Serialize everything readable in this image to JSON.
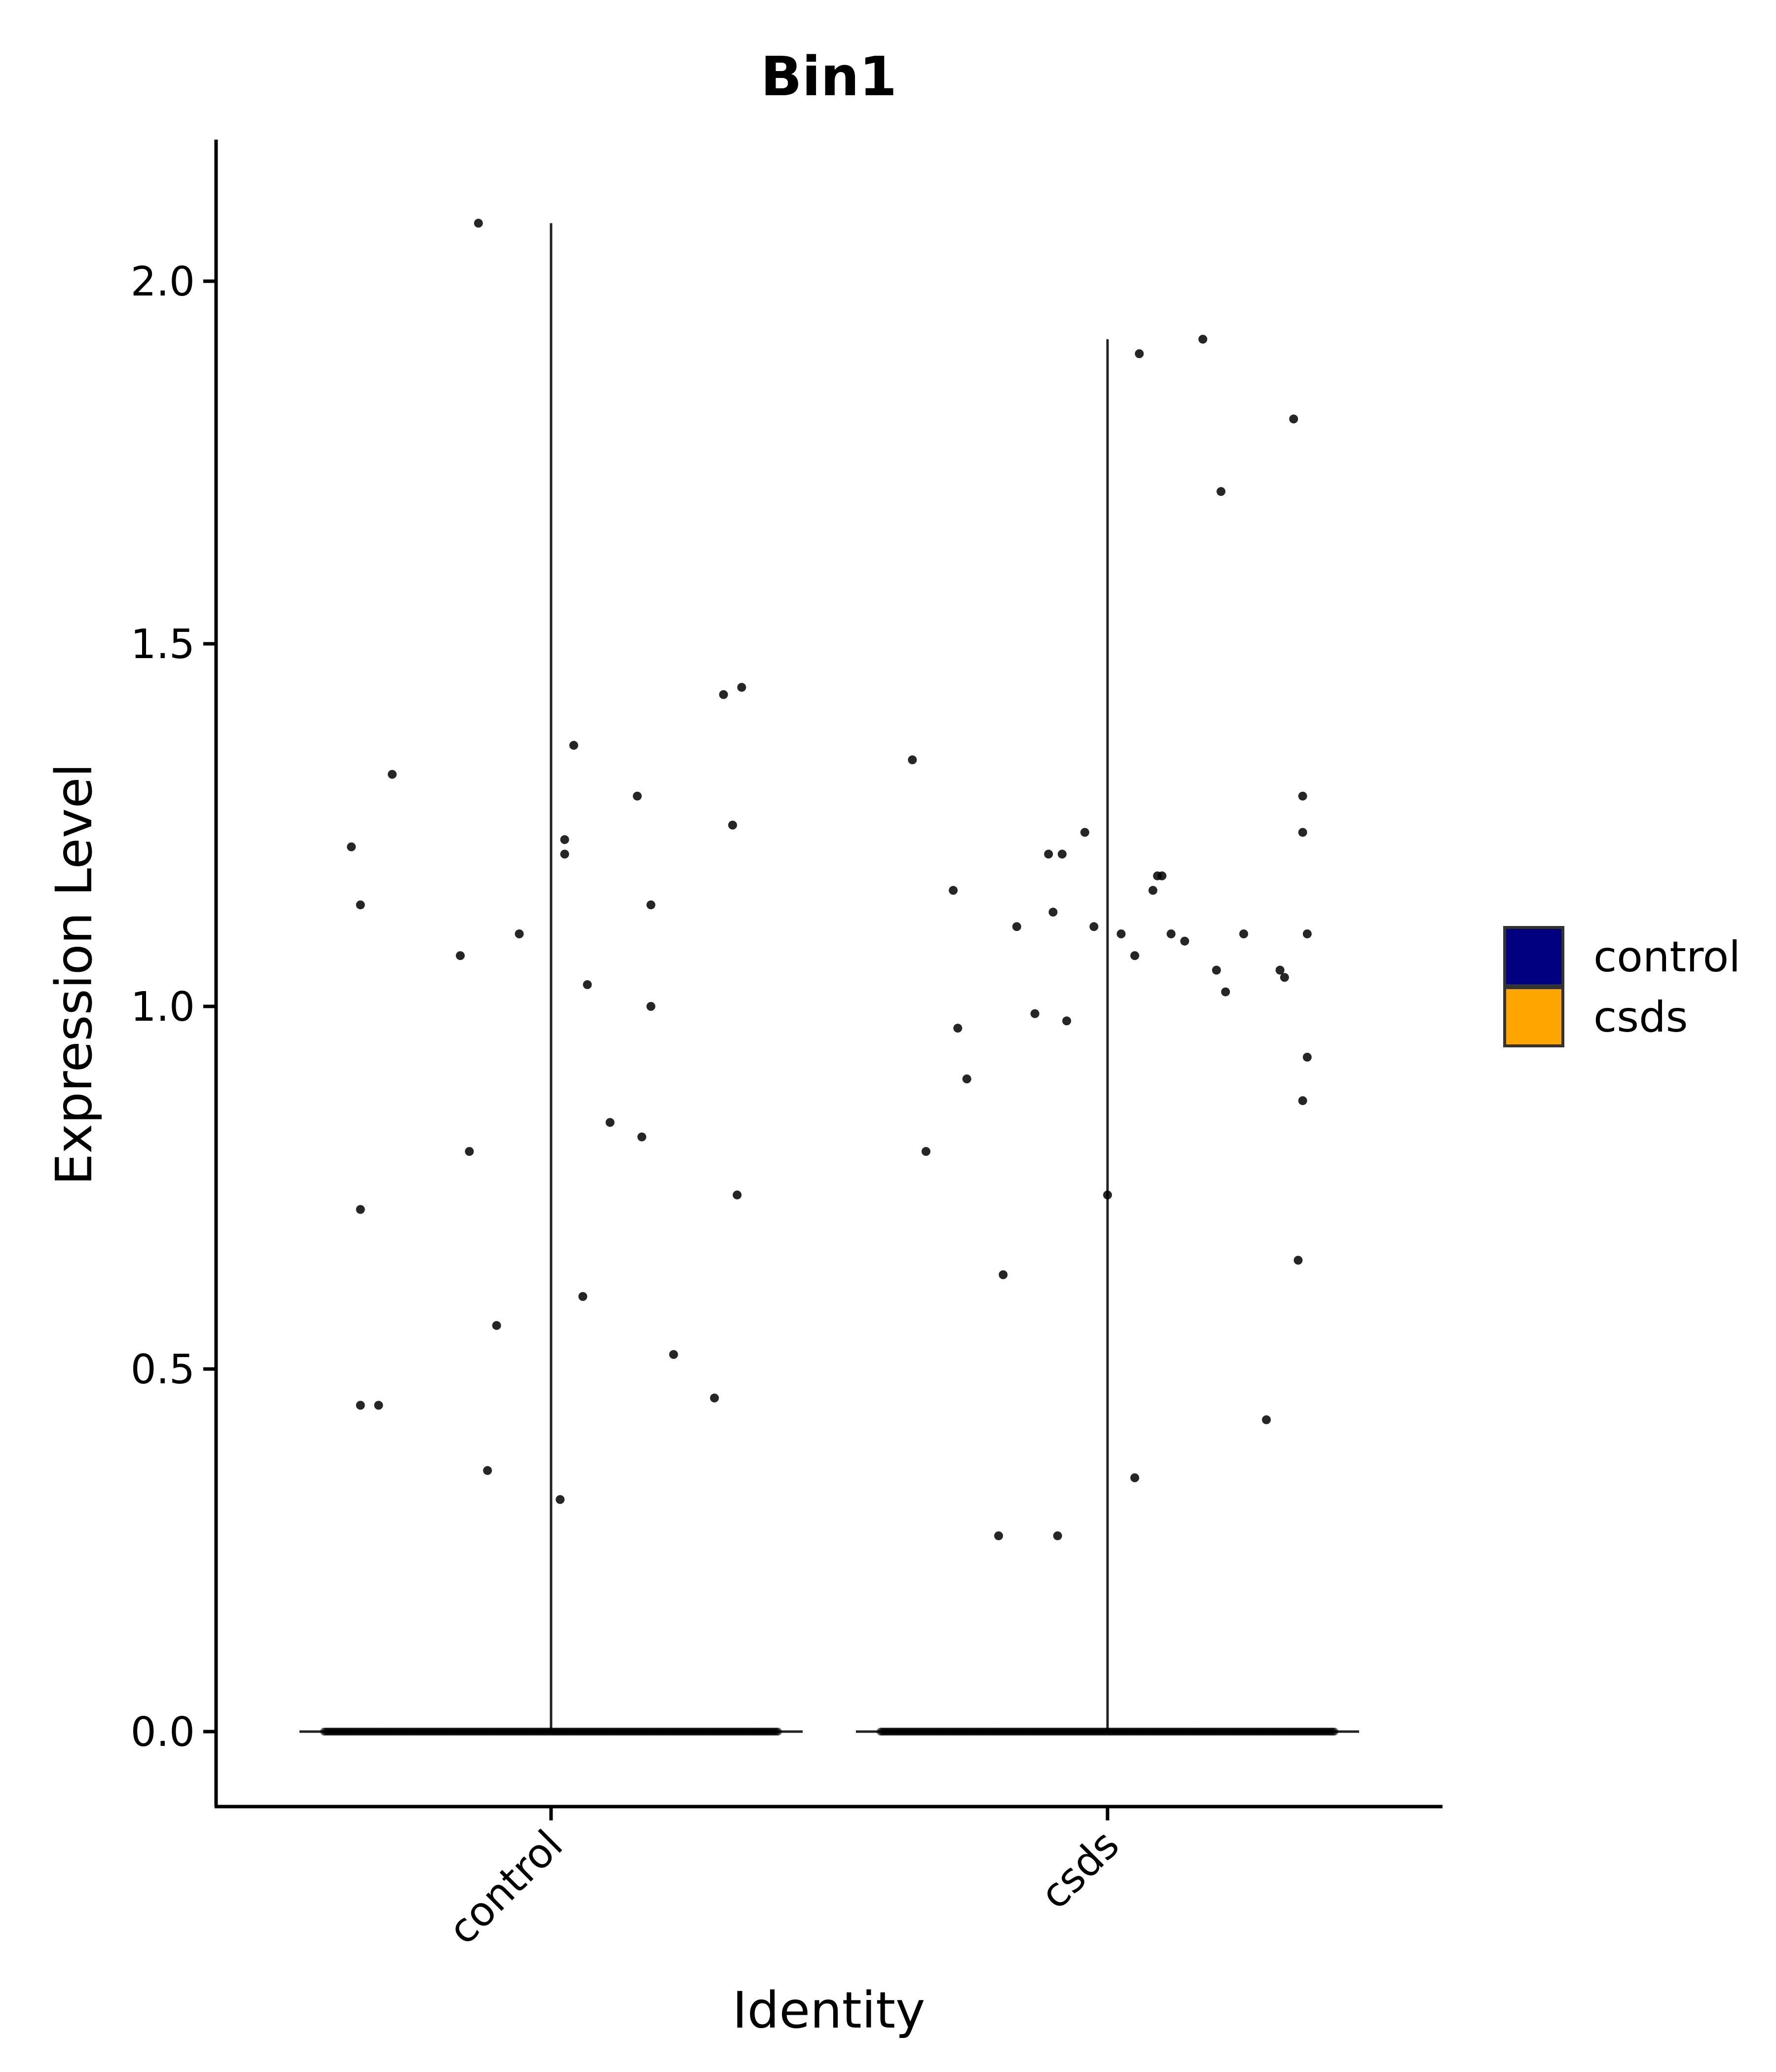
{
  "chart_data": {
    "type": "violin",
    "title": "Bin1",
    "xlabel": "Identity",
    "ylabel": "Expression Level",
    "ylim": [
      -0.1,
      2.2
    ],
    "yticks": [
      0.0,
      0.5,
      1.0,
      1.5,
      2.0
    ],
    "ytick_labels": [
      "0.0",
      "0.5",
      "1.0",
      "1.5",
      "2.0"
    ],
    "categories": [
      "control",
      "csds"
    ],
    "grid": false,
    "legend": {
      "position": "right",
      "entries": [
        {
          "label": "control",
          "color": "#000080"
        },
        {
          "label": "csds",
          "color": "#FFA500"
        }
      ]
    },
    "series": [
      {
        "category": "control",
        "max": 2.08,
        "zero_count": 300,
        "nonzero_points": [
          {
            "x": 0.06,
            "y": 1.22
          },
          {
            "x": 0.08,
            "y": 1.14
          },
          {
            "x": 0.08,
            "y": 0.72
          },
          {
            "x": 0.08,
            "y": 0.45
          },
          {
            "x": 0.12,
            "y": 0.45
          },
          {
            "x": 0.15,
            "y": 1.32
          },
          {
            "x": 0.3,
            "y": 1.07
          },
          {
            "x": 0.32,
            "y": 0.8
          },
          {
            "x": 0.34,
            "y": 2.08
          },
          {
            "x": 0.36,
            "y": 0.36
          },
          {
            "x": 0.38,
            "y": 0.56
          },
          {
            "x": 0.43,
            "y": 1.1
          },
          {
            "x": 0.52,
            "y": 0.32
          },
          {
            "x": 0.53,
            "y": 1.23
          },
          {
            "x": 0.53,
            "y": 1.21
          },
          {
            "x": 0.55,
            "y": 1.36
          },
          {
            "x": 0.57,
            "y": 0.6
          },
          {
            "x": 0.58,
            "y": 1.03
          },
          {
            "x": 0.63,
            "y": 0.84
          },
          {
            "x": 0.69,
            "y": 1.29
          },
          {
            "x": 0.7,
            "y": 0.82
          },
          {
            "x": 0.72,
            "y": 1.0
          },
          {
            "x": 0.72,
            "y": 1.14
          },
          {
            "x": 0.77,
            "y": 0.52
          },
          {
            "x": 0.86,
            "y": 0.46
          },
          {
            "x": 0.88,
            "y": 1.43
          },
          {
            "x": 0.9,
            "y": 1.25
          },
          {
            "x": 0.91,
            "y": 0.74
          },
          {
            "x": 0.92,
            "y": 1.44
          }
        ]
      },
      {
        "category": "csds",
        "max": 1.92,
        "zero_count": 300,
        "nonzero_points": [
          {
            "x": 0.07,
            "y": 1.34
          },
          {
            "x": 0.1,
            "y": 0.8
          },
          {
            "x": 0.16,
            "y": 1.16
          },
          {
            "x": 0.17,
            "y": 0.97
          },
          {
            "x": 0.19,
            "y": 0.9
          },
          {
            "x": 0.26,
            "y": 0.27
          },
          {
            "x": 0.27,
            "y": 0.63
          },
          {
            "x": 0.3,
            "y": 1.11
          },
          {
            "x": 0.34,
            "y": 0.99
          },
          {
            "x": 0.37,
            "y": 1.21
          },
          {
            "x": 0.38,
            "y": 1.13
          },
          {
            "x": 0.39,
            "y": 0.27
          },
          {
            "x": 0.4,
            "y": 1.21
          },
          {
            "x": 0.41,
            "y": 0.98
          },
          {
            "x": 0.45,
            "y": 1.24
          },
          {
            "x": 0.47,
            "y": 1.11
          },
          {
            "x": 0.5,
            "y": 0.74
          },
          {
            "x": 0.53,
            "y": 1.1
          },
          {
            "x": 0.56,
            "y": 1.07
          },
          {
            "x": 0.56,
            "y": 0.35
          },
          {
            "x": 0.57,
            "y": 1.9
          },
          {
            "x": 0.6,
            "y": 1.16
          },
          {
            "x": 0.61,
            "y": 1.18
          },
          {
            "x": 0.62,
            "y": 1.18
          },
          {
            "x": 0.64,
            "y": 1.1
          },
          {
            "x": 0.67,
            "y": 1.09
          },
          {
            "x": 0.71,
            "y": 1.92
          },
          {
            "x": 0.74,
            "y": 1.05
          },
          {
            "x": 0.75,
            "y": 1.71
          },
          {
            "x": 0.76,
            "y": 1.02
          },
          {
            "x": 0.8,
            "y": 1.1
          },
          {
            "x": 0.85,
            "y": 0.43
          },
          {
            "x": 0.88,
            "y": 1.05
          },
          {
            "x": 0.89,
            "y": 1.04
          },
          {
            "x": 0.91,
            "y": 1.81
          },
          {
            "x": 0.92,
            "y": 0.65
          },
          {
            "x": 0.93,
            "y": 0.87
          },
          {
            "x": 0.93,
            "y": 1.24
          },
          {
            "x": 0.93,
            "y": 1.29
          },
          {
            "x": 0.94,
            "y": 1.1
          },
          {
            "x": 0.94,
            "y": 0.93
          }
        ]
      }
    ]
  }
}
